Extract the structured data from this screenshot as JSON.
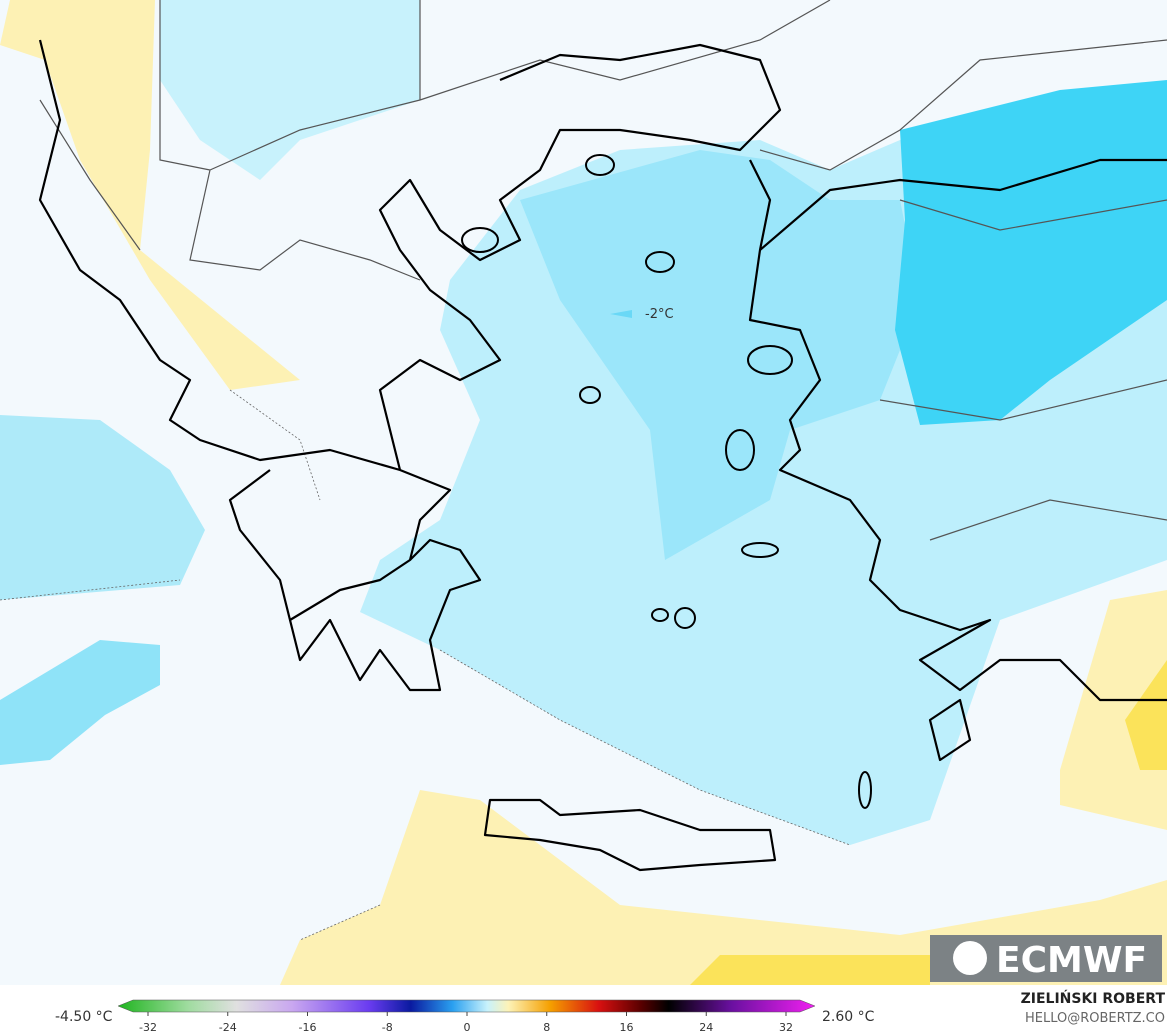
{
  "map": {
    "annotations": [
      {
        "label": "-2°C"
      }
    ],
    "logo": "ECMWF"
  },
  "legend": {
    "min_label": "-4.50 °C",
    "max_label": "2.60 °C",
    "ticks": [
      -32,
      -24,
      -16,
      -8,
      0,
      8,
      16,
      24,
      32
    ]
  },
  "credit": {
    "author": "ZIELIŃSKI ROBERT",
    "contact": "HELLO@ROBERTZ.CO"
  }
}
